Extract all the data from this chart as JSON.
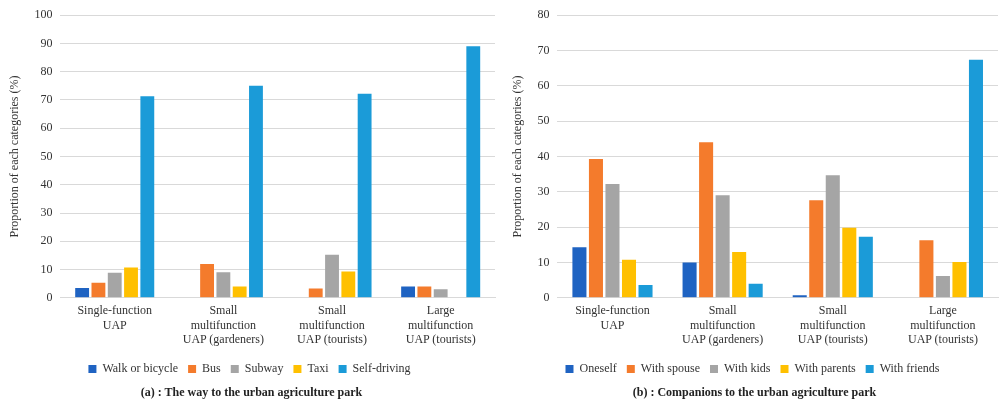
{
  "chart_data": [
    {
      "type": "bar",
      "title": "(a) : The way to the urban agriculture park",
      "ylabel": "Proportion of each categories (%)",
      "categories": [
        "Single-function UAP",
        "Small multifunction UAP (gardeners)",
        "Small multifunction UAP (tourists)",
        "Large multifunction UAP (tourists)"
      ],
      "series": [
        {
          "name": "Walk or bicycle",
          "color": "#1f63c2",
          "values": [
            3.5,
            0,
            0,
            4
          ]
        },
        {
          "name": "Bus",
          "color": "#f47b2c",
          "values": [
            5.3,
            12,
            3.3,
            4
          ]
        },
        {
          "name": "Subway",
          "color": "#a5a5a5",
          "values": [
            8.9,
            9,
            15.2,
            3
          ]
        },
        {
          "name": "Taxi",
          "color": "#ffc000",
          "values": [
            10.7,
            4,
            9.3,
            0
          ]
        },
        {
          "name": "Self-driving",
          "color": "#1b9bd8",
          "values": [
            71.3,
            75,
            72.2,
            89
          ]
        }
      ],
      "ylim": [
        0,
        100
      ],
      "yticks": [
        0,
        10,
        20,
        30,
        40,
        50,
        60,
        70,
        80,
        90,
        100
      ],
      "grid": "y",
      "legend": "bottom"
    },
    {
      "type": "bar",
      "title": "(b) : Companions to the urban agriculture park",
      "ylabel": "Proportion of each categories (%)",
      "categories": [
        "Single-function UAP",
        "Small multifunction UAP (gardeners)",
        "Small multifunction UAP (tourists)",
        "Large multifunction UAP (tourists)"
      ],
      "series": [
        {
          "name": "Oneself",
          "color": "#1f63c2",
          "values": [
            14.3,
            10,
            0.7,
            0
          ]
        },
        {
          "name": "With spouse",
          "color": "#f47b2c",
          "values": [
            39.3,
            44,
            27.6,
            16.3
          ]
        },
        {
          "name": "With kids",
          "color": "#a5a5a5",
          "values": [
            32.2,
            29,
            34.7,
            6.2
          ]
        },
        {
          "name": "With parents",
          "color": "#ffc000",
          "values": [
            10.8,
            13,
            19.8,
            10.1
          ]
        },
        {
          "name": "With friends",
          "color": "#1b9bd8",
          "values": [
            3.6,
            4,
            17.3,
            67.4
          ]
        }
      ],
      "ylim": [
        0,
        80
      ],
      "yticks": [
        0,
        10,
        20,
        30,
        40,
        50,
        60,
        70,
        80
      ],
      "grid": "y",
      "legend": "bottom"
    }
  ]
}
